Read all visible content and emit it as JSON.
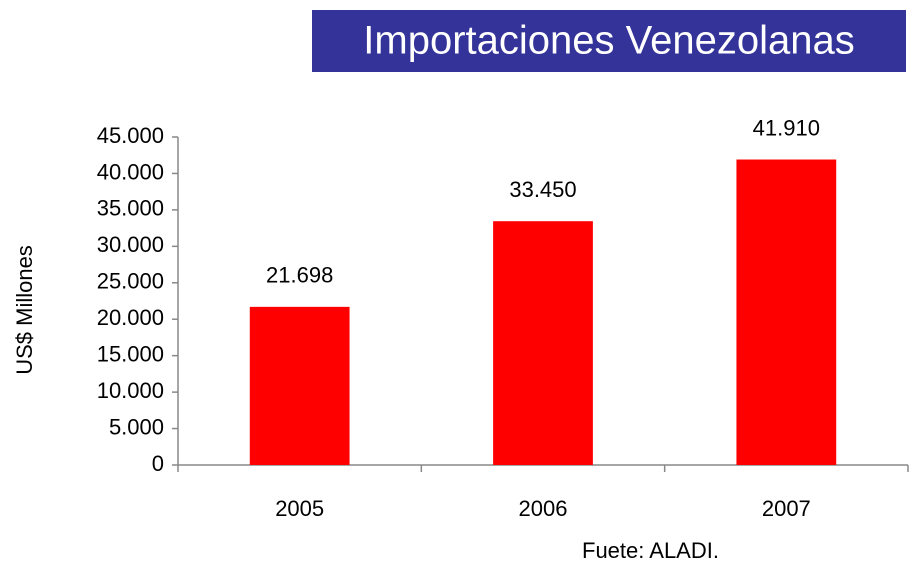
{
  "chart_data": {
    "type": "bar",
    "title": "Importaciones Venezolanas",
    "y_label": "US$  Millones",
    "source": "Fuete: ALADI.",
    "categories": [
      "2005",
      "2006",
      "2007"
    ],
    "values": [
      21698,
      33450,
      41910
    ],
    "value_labels": [
      "21.698",
      "33.450",
      "41.910"
    ],
    "color": "#ff0000",
    "ylim": [
      0,
      45000
    ],
    "yticks": [
      0,
      {
        "value": 5000,
        "label": "5.000"
      },
      {
        "value": 10000,
        "label": "10.000"
      },
      {
        "value": 15000,
        "label": "15.000"
      },
      {
        "value": 20000,
        "label": "20.000"
      },
      {
        "value": 25000,
        "label": "25.000"
      },
      {
        "value": 30000,
        "label": "30.000"
      },
      {
        "value": 35000,
        "label": "35.000"
      },
      {
        "value": 40000,
        "label": "40.000"
      },
      {
        "value": 45000,
        "label": "45.000"
      }
    ],
    "grid": false
  }
}
